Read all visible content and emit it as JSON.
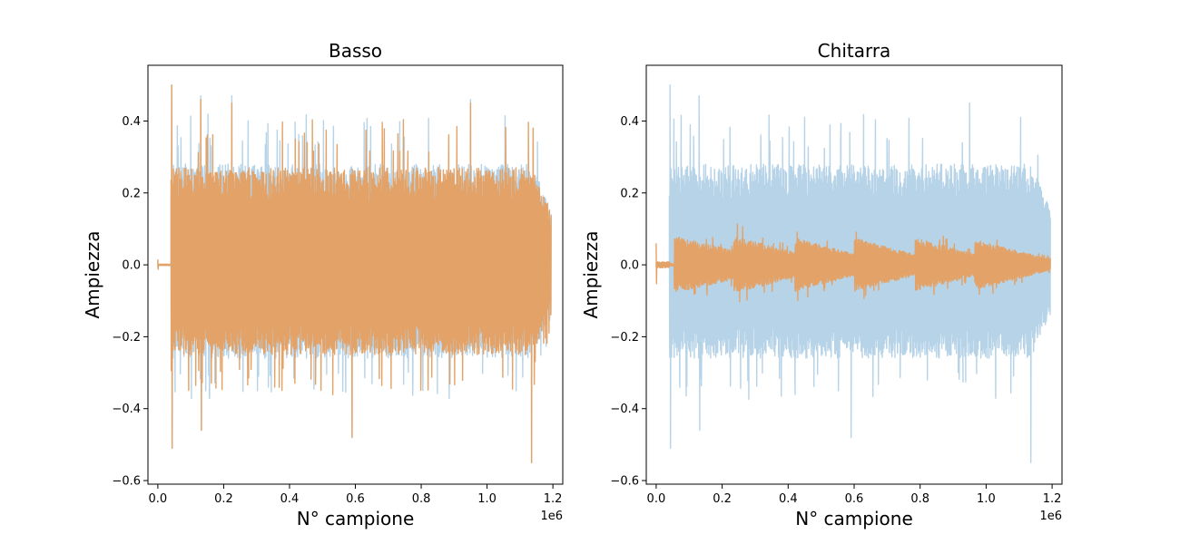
{
  "chart_data": [
    {
      "type": "line",
      "title": "Basso",
      "xlabel": "N° campione",
      "ylabel": "Ampiezza",
      "x_offset_label": "1e6",
      "xlim": [
        -30000,
        1230000
      ],
      "ylim": [
        -0.61,
        0.555
      ],
      "x_ticks": [
        0,
        200000,
        400000,
        600000,
        800000,
        1000000,
        1200000
      ],
      "x_tick_labels": [
        "0.0",
        "0.2",
        "0.4",
        "0.6",
        "0.8",
        "1.0",
        "1.2"
      ],
      "y_ticks": [
        -0.6,
        -0.4,
        -0.2,
        0.0,
        0.2,
        0.4
      ],
      "y_tick_labels": [
        "−0.6",
        "−0.4",
        "−0.2",
        "0.0",
        "0.2",
        "0.4"
      ],
      "grid": false,
      "series": [
        {
          "color": "#b7d3e8",
          "start": 40000,
          "end": 1195000,
          "envelope_pos": 0.28,
          "envelope_neg": -0.26,
          "lead_in": {
            "from": 0,
            "to": 40000,
            "amp": 0.01
          },
          "peaks": [
            [
              42000,
              0.5
            ],
            [
              42500,
              -0.51
            ],
            [
              130000,
              0.47
            ],
            [
              132000,
              -0.46
            ],
            [
              225000,
              0.47
            ],
            [
              590000,
              -0.48
            ],
            [
              950000,
              0.46
            ],
            [
              1135000,
              -0.55
            ],
            [
              1140000,
              0.38
            ]
          ]
        },
        {
          "color": "#e3a368",
          "start": 40000,
          "end": 1195000,
          "envelope_pos": 0.27,
          "envelope_neg": -0.25,
          "lead_in": {
            "from": 0,
            "to": 40000,
            "amp": 0.015
          },
          "peaks": [
            [
              42000,
              0.5
            ],
            [
              42500,
              -0.51
            ],
            [
              130000,
              0.46
            ],
            [
              132000,
              -0.46
            ],
            [
              225000,
              0.45
            ],
            [
              590000,
              -0.48
            ],
            [
              950000,
              0.45
            ],
            [
              1135000,
              -0.55
            ],
            [
              1140000,
              0.38
            ]
          ]
        }
      ]
    },
    {
      "type": "line",
      "title": "Chitarra",
      "xlabel": "N° campione",
      "ylabel": "Ampiezza",
      "x_offset_label": "1e6",
      "xlim": [
        -30000,
        1230000
      ],
      "ylim": [
        -0.61,
        0.555
      ],
      "x_ticks": [
        0,
        200000,
        400000,
        600000,
        800000,
        1000000,
        1200000
      ],
      "x_tick_labels": [
        "0.0",
        "0.2",
        "0.4",
        "0.6",
        "0.8",
        "1.0",
        "1.2"
      ],
      "y_ticks": [
        -0.6,
        -0.4,
        -0.2,
        0.0,
        0.2,
        0.4
      ],
      "y_tick_labels": [
        "−0.6",
        "−0.4",
        "−0.2",
        "0.0",
        "0.2",
        "0.4"
      ],
      "grid": false,
      "series": [
        {
          "color": "#b7d3e8",
          "start": 40000,
          "end": 1195000,
          "envelope_pos": 0.28,
          "envelope_neg": -0.26,
          "lead_in": {
            "from": 0,
            "to": 40000,
            "amp": 0.005
          },
          "peaks": [
            [
              42000,
              0.5
            ],
            [
              42500,
              -0.51
            ],
            [
              130000,
              0.47
            ],
            [
              132000,
              -0.46
            ],
            [
              590000,
              -0.48
            ],
            [
              950000,
              0.45
            ],
            [
              1135000,
              -0.55
            ]
          ]
        },
        {
          "color": "#e3a368",
          "start": 40000,
          "end": 1195000,
          "lead_in": {
            "from": 0,
            "to": 40000,
            "amp": 0.06
          },
          "segments": [
            {
              "start": 55000,
              "end": 235000,
              "amp_start": 0.08,
              "amp_end": 0.04
            },
            {
              "start": 235000,
              "end": 420000,
              "amp_start": 0.08,
              "amp_end": 0.035
            },
            {
              "start": 420000,
              "end": 600000,
              "amp_start": 0.075,
              "amp_end": 0.03
            },
            {
              "start": 600000,
              "end": 785000,
              "amp_start": 0.075,
              "amp_end": 0.03
            },
            {
              "start": 785000,
              "end": 965000,
              "amp_start": 0.075,
              "amp_end": 0.03
            },
            {
              "start": 965000,
              "end": 1195000,
              "amp_start": 0.07,
              "amp_end": 0.015
            }
          ]
        }
      ]
    }
  ]
}
